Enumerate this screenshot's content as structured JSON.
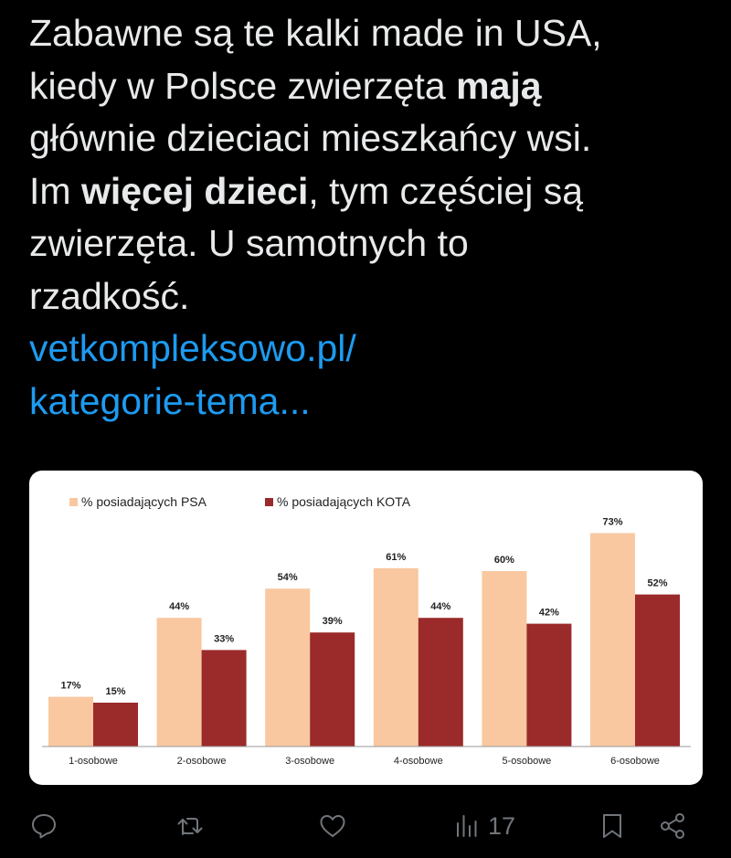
{
  "tweet": {
    "line1": "Zabawne są te kalki made in USA,",
    "line2_pre": "kiedy w Polsce zwierzęta ",
    "line2_bold": "mają",
    "line3": "głównie dzieciaci mieszkańcy wsi.",
    "line4_pre": "Im ",
    "line4_bold": "więcej dzieci",
    "line4_post": ", tym częściej są",
    "line5": "zwierzęta. U samotnych to",
    "line6": "rzadkość.",
    "link_line1": "vetkompleksowo.pl/",
    "link_line2": "kategorie-tema..."
  },
  "colors": {
    "background": "#000000",
    "text": "#e7e9ea",
    "link": "#1d9bf0",
    "muted": "#71767b",
    "psa": "#f9c8a0",
    "kota": "#9b2a2a"
  },
  "chart_data": {
    "type": "bar",
    "categories": [
      "1-osobowe",
      "2-osobowe",
      "3-osobowe",
      "4-osobowe",
      "5-osobowe",
      "6-osobowe"
    ],
    "series": [
      {
        "name": "% posiadających PSA",
        "values": [
          17,
          44,
          54,
          61,
          60,
          73
        ],
        "labels": [
          "17%",
          "44%",
          "54%",
          "61%",
          "60%",
          "73%"
        ]
      },
      {
        "name": "% posiadających KOTA",
        "values": [
          15,
          33,
          39,
          44,
          42,
          52
        ],
        "labels": [
          "15%",
          "33%",
          "39%",
          "44%",
          "42%",
          "52%"
        ]
      }
    ],
    "ylim": [
      0,
      80
    ],
    "legend": "top-left",
    "grid": false
  },
  "actions": {
    "reply_icon": "reply-icon",
    "retweet_icon": "retweet-icon",
    "like_icon": "heart-icon",
    "views_icon": "views-icon",
    "views_count": "17",
    "bookmark_icon": "bookmark-icon",
    "share_icon": "share-icon"
  }
}
